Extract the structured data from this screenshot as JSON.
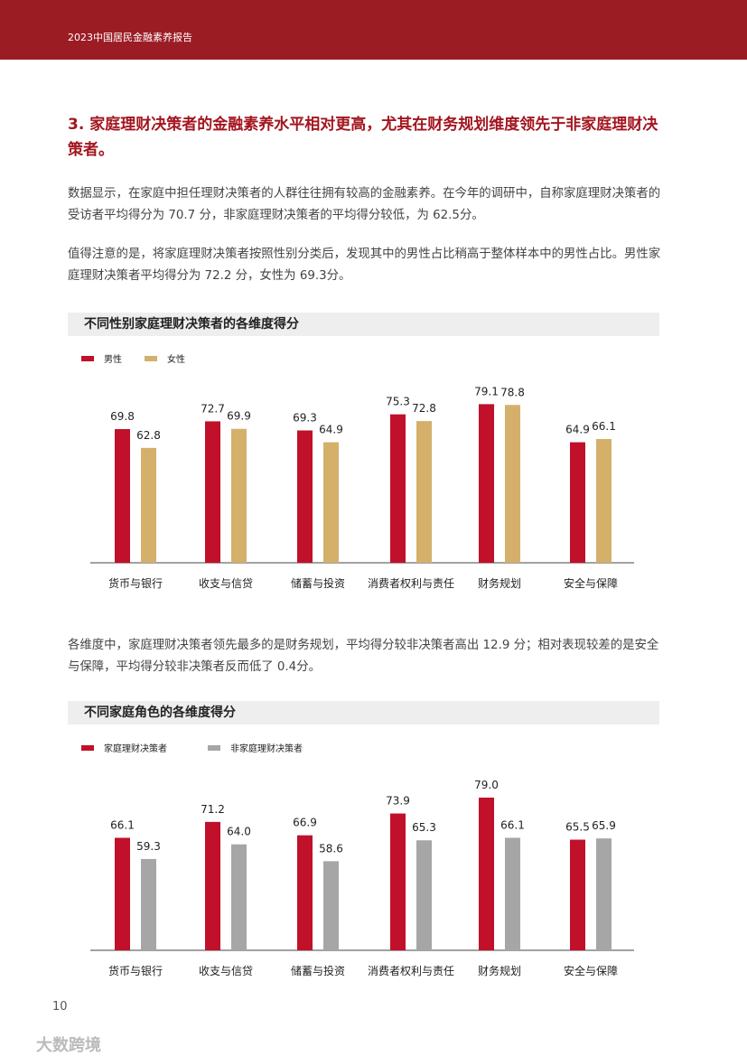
{
  "header": {
    "title": "2023中国居民金融素养报告"
  },
  "section": {
    "heading": "3.  家庭理财决策者的金融素养水平相对更高，尤其在财务规划维度领先于非家庭理财决策者。"
  },
  "paragraphs": [
    "数据显示，在家庭中担任理财决策者的人群往往拥有较高的金融素养。在今年的调研中，自称家庭理财决策者的受访者平均得分为 70.7 分，非家庭理财决策者的平均得分较低，为 62.5分。",
    "值得注意的是，将家庭理财决策者按照性别分类后，发现其中的男性占比稍高于整体样本中的男性占比。男性家庭理财决策者平均得分为 72.2 分，女性为 69.3分。",
    "各维度中，家庭理财决策者领先最多的是财务规划，平均得分较非决策者高出 12.9 分；相对表现较差的是安全与保障，平均得分较非决策者反而低了 0.4分。"
  ],
  "chart_data": [
    {
      "type": "bar",
      "title": "不同性别家庭理财决策者的各维度得分",
      "categories": [
        "货币与银行",
        "收支与信贷",
        "储蓄与投资",
        "消费者权利与责任",
        "财务规划",
        "安全与保障"
      ],
      "series": [
        {
          "name": "男性",
          "color": "#c0102a",
          "values": [
            69.8,
            72.7,
            69.3,
            75.3,
            79.1,
            64.9
          ]
        },
        {
          "name": "女性",
          "color": "#d4b06a",
          "values": [
            62.8,
            69.9,
            64.9,
            72.8,
            78.8,
            66.1
          ]
        }
      ],
      "ylim": [
        20,
        90
      ]
    },
    {
      "type": "bar",
      "title": "不同家庭角色的各维度得分",
      "categories": [
        "货币与银行",
        "收支与信贷",
        "储蓄与投资",
        "消费者权利与责任",
        "财务规划",
        "安全与保障"
      ],
      "series": [
        {
          "name": "家庭理财决策者",
          "color": "#c0102a",
          "values": [
            66.1,
            71.2,
            66.9,
            73.9,
            79,
            65.5
          ],
          "value_labels": [
            "66.1",
            "71.2",
            "66.9",
            "73.9",
            "79.0",
            "65.5"
          ]
        },
        {
          "name": "非家庭理财决策者",
          "color": "#a6a6a6",
          "values": [
            59.3,
            64,
            58.6,
            65.3,
            66.1,
            65.9
          ],
          "value_labels": [
            "59.3",
            "64.0",
            "58.6",
            "65.3",
            "66.1",
            "65.9"
          ]
        }
      ],
      "ylim": [
        30,
        90
      ]
    }
  ],
  "footer": {
    "page_number": "10",
    "watermark": "大数跨境"
  }
}
